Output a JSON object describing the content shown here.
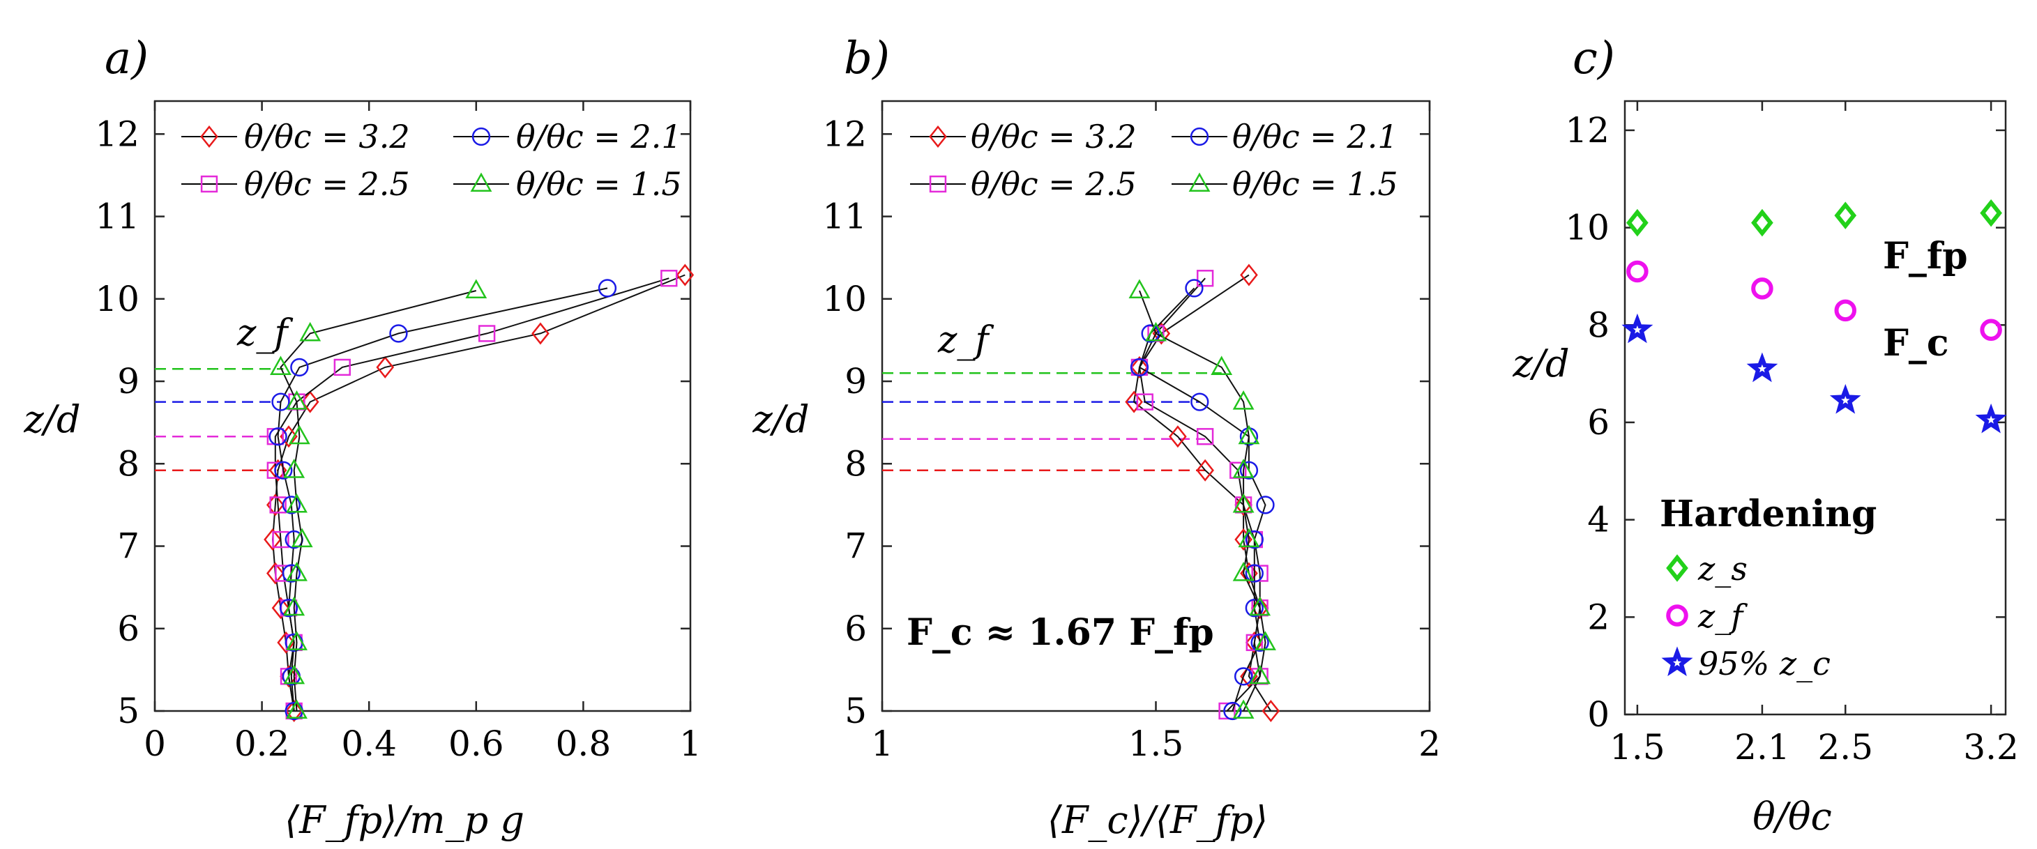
{
  "colors": {
    "3.2": "#e8191a",
    "2.5": "#e42ad9",
    "2.1": "#1a1ae6",
    "1.5": "#22c31c",
    "hard_zs": "#22d11a",
    "hard_zf": "#ee11ee",
    "hard_zc": "#1a1ae6"
  },
  "chart_data": [
    {
      "id": "a",
      "type": "line",
      "panel_label": "a)",
      "xlabel": "⟨F_fp⟩/m_p g",
      "ylabel": "z/d",
      "xlim": [
        0,
        1
      ],
      "ylim": [
        5,
        12.4
      ],
      "xticks": [
        "0",
        "0.2",
        "0.4",
        "0.6",
        "0.8",
        "1"
      ],
      "xtick_values": [
        0,
        0.2,
        0.4,
        0.6,
        0.8,
        1
      ],
      "yticks": [
        "5",
        "6",
        "7",
        "8",
        "9",
        "10",
        "11",
        "12"
      ],
      "ytick_values": [
        5,
        6,
        7,
        8,
        9,
        10,
        11,
        12
      ],
      "legend": [
        "θ/θc = 3.2",
        "θ/θc = 2.1",
        "θ/θc = 2.5",
        "θ/θc = 1.5"
      ],
      "annotation": "z_f",
      "series": [
        {
          "name": "θ/θc = 3.2",
          "key": "3.2",
          "marker": "diamond",
          "x": [
            0.26,
            0.25,
            0.245,
            0.235,
            0.225,
            0.22,
            0.225,
            0.23,
            0.25,
            0.29,
            0.43,
            0.72,
            0.99
          ],
          "y": [
            5.0,
            5.42,
            5.83,
            6.25,
            6.67,
            7.08,
            7.5,
            7.92,
            8.33,
            8.75,
            9.17,
            9.58,
            10.29
          ]
        },
        {
          "name": "θ/θc = 2.5",
          "key": "2.5",
          "marker": "square",
          "x": [
            0.26,
            0.25,
            0.26,
            0.25,
            0.24,
            0.235,
            0.23,
            0.225,
            0.225,
            0.265,
            0.35,
            0.62,
            0.96
          ],
          "y": [
            5.0,
            5.42,
            5.83,
            6.25,
            6.67,
            7.08,
            7.5,
            7.92,
            8.33,
            8.75,
            9.17,
            9.58,
            10.25
          ]
        },
        {
          "name": "θ/θc = 2.1",
          "key": "2.1",
          "marker": "circle",
          "x": [
            0.26,
            0.255,
            0.26,
            0.25,
            0.255,
            0.26,
            0.255,
            0.24,
            0.23,
            0.235,
            0.27,
            0.455,
            0.845
          ],
          "y": [
            5.0,
            5.42,
            5.83,
            6.25,
            6.67,
            7.08,
            7.5,
            7.92,
            8.33,
            8.75,
            9.17,
            9.58,
            10.13
          ]
        },
        {
          "name": "θ/θc = 1.5",
          "key": "1.5",
          "marker": "triangle",
          "x": [
            0.265,
            0.26,
            0.265,
            0.26,
            0.265,
            0.275,
            0.265,
            0.26,
            0.27,
            0.265,
            0.235,
            0.29,
            0.6
          ],
          "y": [
            5.0,
            5.42,
            5.83,
            6.25,
            6.67,
            7.08,
            7.5,
            7.92,
            8.33,
            8.75,
            9.17,
            9.58,
            10.1
          ]
        }
      ],
      "zf_lines": [
        {
          "key": "1.5",
          "y": 9.15,
          "x_end": 0.24
        },
        {
          "key": "2.1",
          "y": 8.75,
          "x_end": 0.235
        },
        {
          "key": "2.5",
          "y": 8.33,
          "x_end": 0.225
        },
        {
          "key": "3.2",
          "y": 7.92,
          "x_end": 0.23
        }
      ]
    },
    {
      "id": "b",
      "type": "line",
      "panel_label": "b)",
      "xlabel": "⟨F_c⟩/⟨F_fp⟩",
      "ylabel": "z/d",
      "xlim": [
        1,
        2
      ],
      "ylim": [
        5,
        12.4
      ],
      "xticks": [
        "1",
        "1.5",
        "2"
      ],
      "xtick_values": [
        1,
        1.5,
        2
      ],
      "yticks": [
        "5",
        "6",
        "7",
        "8",
        "9",
        "10",
        "11",
        "12"
      ],
      "ytick_values": [
        5,
        6,
        7,
        8,
        9,
        10,
        11,
        12
      ],
      "legend": [
        "θ/θc = 3.2",
        "θ/θc = 2.1",
        "θ/θc = 2.5",
        "θ/θc = 1.5"
      ],
      "annotation": "z_f",
      "annotation_formula": "F_c ≈ 1.67 F_fp",
      "series": [
        {
          "name": "θ/θc = 3.2",
          "key": "3.2",
          "marker": "diamond",
          "x": [
            1.71,
            1.67,
            1.68,
            1.69,
            1.67,
            1.66,
            1.66,
            1.59,
            1.54,
            1.46,
            1.47,
            1.51,
            1.67
          ],
          "y": [
            5.0,
            5.42,
            5.83,
            6.25,
            6.67,
            7.08,
            7.5,
            7.92,
            8.33,
            8.75,
            9.17,
            9.58,
            10.29
          ]
        },
        {
          "name": "θ/θc = 2.5",
          "key": "2.5",
          "marker": "square",
          "x": [
            1.63,
            1.69,
            1.68,
            1.69,
            1.69,
            1.68,
            1.66,
            1.65,
            1.59,
            1.48,
            1.47,
            1.5,
            1.59
          ],
          "y": [
            5.0,
            5.42,
            5.83,
            6.25,
            6.67,
            7.08,
            7.5,
            7.92,
            8.33,
            8.75,
            9.17,
            9.58,
            10.25
          ]
        },
        {
          "name": "θ/θc = 2.1",
          "key": "2.1",
          "marker": "circle",
          "x": [
            1.64,
            1.66,
            1.69,
            1.68,
            1.68,
            1.68,
            1.7,
            1.67,
            1.67,
            1.58,
            1.47,
            1.49,
            1.57
          ],
          "y": [
            5.0,
            5.42,
            5.83,
            6.25,
            6.67,
            7.08,
            7.5,
            7.92,
            8.33,
            8.75,
            9.17,
            9.58,
            10.13
          ]
        },
        {
          "name": "θ/θc = 1.5",
          "key": "1.5",
          "marker": "triangle",
          "x": [
            1.66,
            1.69,
            1.7,
            1.69,
            1.66,
            1.67,
            1.66,
            1.66,
            1.67,
            1.66,
            1.62,
            1.5,
            1.47
          ],
          "y": [
            5.0,
            5.42,
            5.83,
            6.25,
            6.67,
            7.08,
            7.5,
            7.92,
            8.33,
            8.75,
            9.17,
            9.58,
            10.1
          ]
        }
      ],
      "zf_lines": [
        {
          "key": "1.5",
          "y": 9.1,
          "x_end": 1.62
        },
        {
          "key": "2.1",
          "y": 8.75,
          "x_end": 1.58
        },
        {
          "key": "2.5",
          "y": 8.3,
          "x_end": 1.59
        },
        {
          "key": "3.2",
          "y": 7.92,
          "x_end": 1.59
        }
      ]
    },
    {
      "id": "c",
      "type": "scatter",
      "panel_label": "c)",
      "xlabel": "θ/θc",
      "ylabel": "z/d",
      "xlim": [
        1.44,
        3.27
      ],
      "ylim": [
        0,
        12.6
      ],
      "xticks": [
        "1.5",
        "2.1",
        "2.5",
        "3.2"
      ],
      "xtick_values": [
        1.5,
        2.1,
        2.5,
        3.2
      ],
      "yticks": [
        "0",
        "2",
        "4",
        "6",
        "8",
        "10",
        "12"
      ],
      "ytick_values": [
        0,
        2,
        4,
        6,
        8,
        10,
        12
      ],
      "legend_title": "Hardening",
      "legend": [
        "z_s",
        "z_f",
        "95% z_c"
      ],
      "annotation_fp": "F_fp",
      "annotation_c": "F_c",
      "series": [
        {
          "name": "z_s",
          "key": "hard_zs",
          "marker": "diamond",
          "x": [
            1.5,
            2.1,
            2.5,
            3.2
          ],
          "y": [
            10.1,
            10.1,
            10.25,
            10.3
          ]
        },
        {
          "name": "z_f",
          "key": "hard_zf",
          "marker": "circle",
          "x": [
            1.5,
            2.1,
            2.5,
            3.2
          ],
          "y": [
            9.1,
            8.75,
            8.3,
            7.9
          ]
        },
        {
          "name": "95% z_c",
          "key": "hard_zc",
          "marker": "star",
          "x": [
            1.5,
            2.1,
            2.5,
            3.2
          ],
          "y": [
            7.9,
            7.1,
            6.45,
            6.05
          ]
        }
      ]
    }
  ]
}
